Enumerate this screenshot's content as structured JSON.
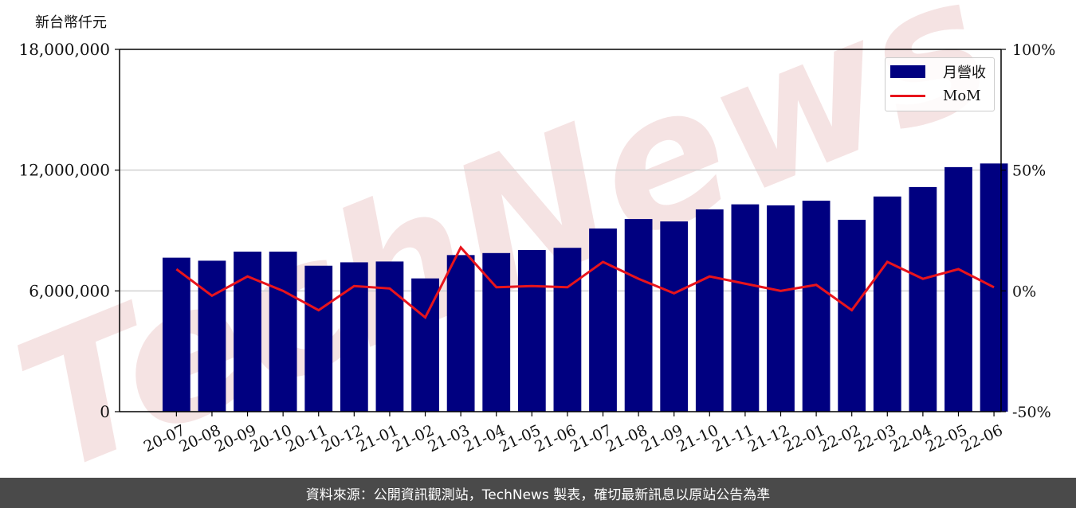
{
  "unit_label": "新台幣仟元",
  "footer": "資料來源：公開資訊觀測站，TechNews 製表，確切最新訊息以原站公告為準",
  "watermark": "TechNews",
  "colors": {
    "bar": "#000080",
    "line": "#e8141c",
    "grid": "#d0d0d0",
    "footer_bg": "#4a4a4a",
    "watermark": "#f2d8d8"
  },
  "chart_data": {
    "type": "bar",
    "categories": [
      "20-07",
      "20-08",
      "20-09",
      "20-10",
      "20-11",
      "20-12",
      "21-01",
      "21-02",
      "21-03",
      "21-04",
      "21-05",
      "21-06",
      "21-07",
      "21-08",
      "21-09",
      "21-10",
      "21-11",
      "21-12",
      "22-01",
      "22-02",
      "22-03",
      "22-04",
      "22-05",
      "22-06"
    ],
    "series": [
      {
        "name": "月營收",
        "type": "bar",
        "axis": "left",
        "values": [
          7650000,
          7500000,
          7950000,
          7950000,
          7250000,
          7420000,
          7460000,
          6620000,
          7780000,
          7880000,
          8030000,
          8140000,
          9100000,
          9570000,
          9450000,
          10050000,
          10300000,
          10250000,
          10480000,
          9530000,
          10690000,
          11160000,
          12150000,
          12330000
        ]
      },
      {
        "name": "MoM",
        "type": "line",
        "axis": "right",
        "values": [
          9,
          -2,
          6,
          0,
          -8,
          2,
          1,
          -11,
          18,
          1.5,
          2,
          1.5,
          12,
          5,
          -1,
          6,
          3,
          0,
          2.5,
          -8,
          12,
          5,
          9,
          1.5
        ]
      }
    ],
    "left_axis": {
      "ylim": [
        0,
        18000000
      ],
      "ticks": [
        "0",
        "6,000,000",
        "12,000,000",
        "18,000,000"
      ],
      "tick_values": [
        0,
        6000000,
        12000000,
        18000000
      ]
    },
    "right_axis": {
      "ylim": [
        -50,
        100
      ],
      "ticks": [
        "-50%",
        "0%",
        "50%",
        "100%"
      ],
      "tick_values": [
        -50,
        0,
        50,
        100
      ]
    },
    "grid": true,
    "legend_position": "top-right"
  }
}
